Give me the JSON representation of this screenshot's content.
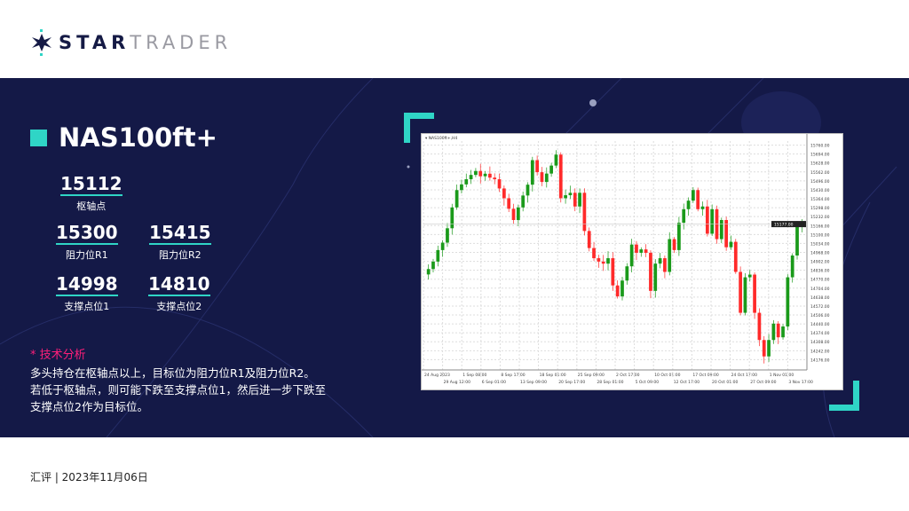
{
  "brand": {
    "name_bold": "STAR",
    "name_light": "TRADER",
    "colors": {
      "navy": "#151a45",
      "teal": "#2fd5c6"
    }
  },
  "instrument": "NAS100ft+",
  "levels": {
    "pivot": {
      "value": "15112",
      "label": "枢轴点"
    },
    "r1": {
      "value": "15300",
      "label": "阻力位R1"
    },
    "r2": {
      "value": "15415",
      "label": "阻力位R2"
    },
    "s1": {
      "value": "14998",
      "label": "支撑点位1"
    },
    "s2": {
      "value": "14810",
      "label": "支撑点位2"
    }
  },
  "analysis": {
    "heading": "* 技术分析",
    "lines": [
      "多头持仓在枢轴点以上，目标位为阻力位R1及阻力位R2。",
      "若低于枢轴点，则可能下跌至支撑点位1，然后进一步下跌至",
      "支撑点位2作为目标位。"
    ]
  },
  "footer": "汇评 | 2023年11月06日",
  "chart_data": {
    "type": "candlestick",
    "title": "NAS100ft+,H4",
    "colors": {
      "up": "#1a9a1a",
      "down": "#ff2a2a"
    },
    "grid": true,
    "ylim": [
      14100,
      15790
    ],
    "current_price": 15177,
    "yticks": [
      15760,
      15694,
      15628,
      15562,
      15496,
      15430,
      15364,
      15298,
      15232,
      15166,
      15100,
      15034,
      14968,
      14902,
      14836,
      14770,
      14704,
      14638,
      14572,
      14506,
      14440,
      14374,
      14308,
      14242,
      14176
    ],
    "xticks": [
      "24 Aug 2023",
      "29 Aug 12:00",
      "1 Sep 08:00",
      "6 Sep 01:00",
      "8 Sep 17:00",
      "13 Sep 09:00",
      "18 Sep 01:00",
      "20 Sep 17:00",
      "25 Sep 09:00",
      "28 Sep 01:00",
      "2 Oct 17:00",
      "5 Oct 09:00",
      "10 Oct 01:00",
      "12 Oct 17:00",
      "17 Oct 09:00",
      "20 Oct 01:00",
      "24 Oct 17:00",
      "27 Oct 09:00",
      "1 Nov 01:00",
      "3 Nov 17:00"
    ],
    "closes": [
      14845,
      14900,
      14985,
      15040,
      15146,
      15300,
      15428,
      15470,
      15508,
      15540,
      15569,
      15530,
      15549,
      15520,
      15508,
      15440,
      15368,
      15290,
      15207,
      15300,
      15388,
      15468,
      15649,
      15560,
      15488,
      15550,
      15609,
      15690,
      15368,
      15390,
      15408,
      15307,
      15408,
      15126,
      15000,
      14925,
      14900,
      14885,
      14925,
      14724,
      14643,
      14760,
      14865,
      15026,
      14965,
      14990,
      14965,
      14684,
      14885,
      14925,
      14824,
      15066,
      14985,
      15187,
      15287,
      15350,
      15428,
      15287,
      15307,
      15106,
      15287,
      15066,
      15207,
      15006,
      15046,
      14824,
      14522,
      14784,
      14804,
      14522,
      14321,
      14200,
      14321,
      14442,
      14341,
      14421,
      14784,
      14945,
      15167,
      15177
    ]
  }
}
